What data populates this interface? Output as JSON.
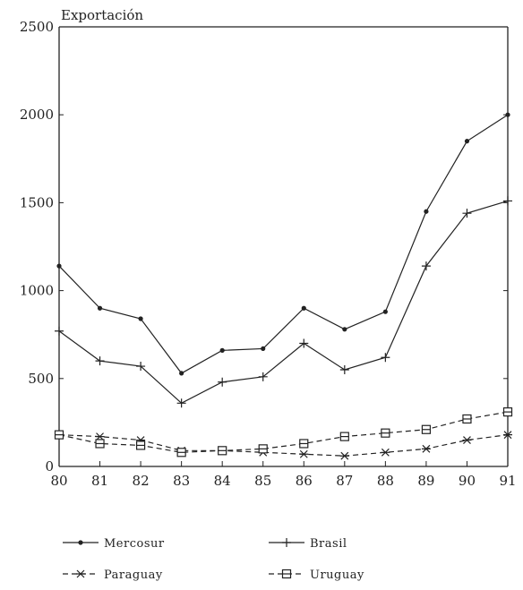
{
  "chart_data": {
    "type": "line",
    "title": "",
    "ylabel": "Exportación",
    "xlabel": "",
    "categories": [
      "80",
      "81",
      "82",
      "83",
      "84",
      "85",
      "86",
      "87",
      "88",
      "89",
      "90",
      "91"
    ],
    "ylim": [
      0,
      2500
    ],
    "yticks": [
      0,
      500,
      1000,
      1500,
      2000,
      2500
    ],
    "grid": false,
    "legend_position": "bottom",
    "series": [
      {
        "name": "Mercosur",
        "marker": "dot",
        "values": [
          1140,
          900,
          840,
          530,
          660,
          670,
          900,
          780,
          880,
          1450,
          1850,
          2000
        ]
      },
      {
        "name": "Brasil",
        "marker": "plus",
        "values": [
          770,
          600,
          570,
          360,
          480,
          510,
          700,
          550,
          620,
          1140,
          1440,
          1510
        ]
      },
      {
        "name": "Paraguay",
        "marker": "star",
        "values": [
          180,
          170,
          150,
          90,
          90,
          80,
          70,
          60,
          80,
          100,
          150,
          180
        ]
      },
      {
        "name": "Uruguay",
        "marker": "square",
        "values": [
          180,
          130,
          120,
          80,
          90,
          100,
          130,
          170,
          190,
          210,
          270,
          310
        ]
      }
    ]
  }
}
